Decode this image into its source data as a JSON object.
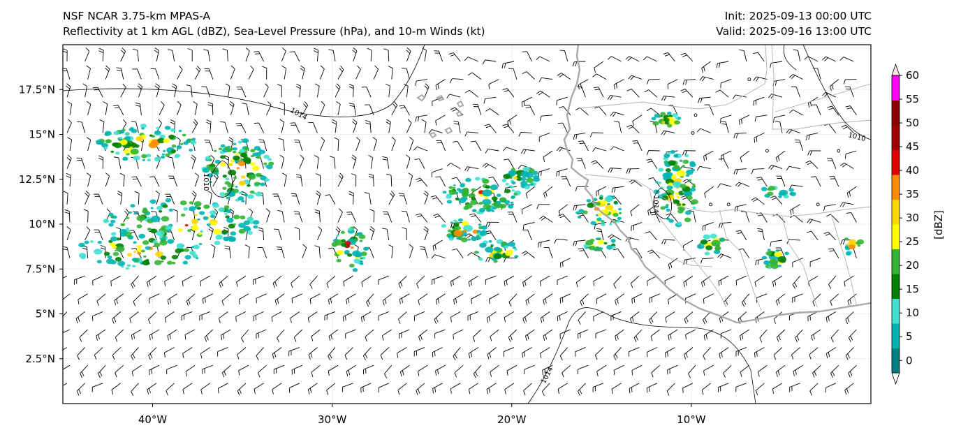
{
  "titles": {
    "model": "NSF NCAR 3.75-km MPAS-A",
    "fields": "Reflectivity at 1 km AGL (dBZ), Sea-Level Pressure (hPa), and 10-m Winds (kt)",
    "init": "Init: 2025-09-13 00:00 UTC",
    "valid": "Valid: 2025-09-16 13:00 UTC"
  },
  "axes": {
    "lon_ticks": [
      "40°W",
      "30°W",
      "20°W",
      "10°W"
    ],
    "lat_ticks": [
      "17.5°N",
      "15°N",
      "12.5°N",
      "10°N",
      "7.5°N",
      "5°N",
      "2.5°N"
    ],
    "lon_range": [
      -45,
      0
    ],
    "lat_range": [
      0,
      20
    ]
  },
  "isobars": [
    {
      "label": "1014"
    },
    {
      "label": "1010"
    },
    {
      "label": "1014"
    },
    {
      "label": "1010"
    },
    {
      "label": "1014"
    }
  ],
  "colorbar": {
    "label": "[dBZ]",
    "ticks": [
      "0",
      "5",
      "10",
      "15",
      "20",
      "25",
      "30",
      "35",
      "40",
      "45",
      "50",
      "55",
      "60"
    ],
    "colors": [
      "#ffffff",
      "#008080",
      "#00b3b3",
      "#40e0d0",
      "#008000",
      "#32b432",
      "#ffff00",
      "#ffd700",
      "#ff8c00",
      "#e00000",
      "#a00000",
      "#8b0000",
      "#ff00ff",
      "#ffe4e1"
    ]
  },
  "colors": {
    "coastline": "#a9a9a9",
    "borders": "#b0b0b0",
    "isobar": "#000000",
    "frame": "#000000"
  }
}
